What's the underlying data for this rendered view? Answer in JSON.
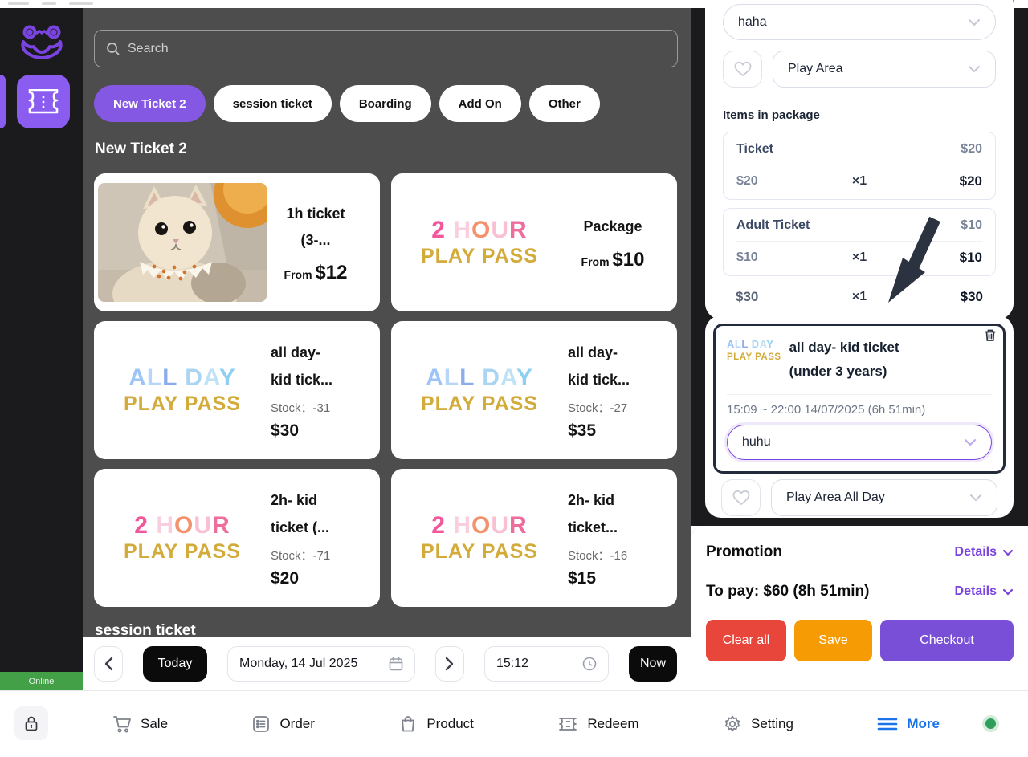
{
  "colors": {
    "accent_purple": "#7a44e0",
    "pill_purple": "#8458e3",
    "red": "#e8453b",
    "orange": "#f79b04",
    "green": "#43a047",
    "blue": "#1a73e8",
    "dark_border": "#232b3a",
    "logo_blue": [
      "#9dc4f4",
      "#b6d5f8",
      "#8badec",
      "#a9d4f2",
      "#bfe2f6",
      "#8fd0f0"
    ],
    "logo_pink": [
      "#f2569b",
      "#f9cede",
      "#f4926e",
      "#f8c0d2",
      "#ee6d9c"
    ],
    "logo_gold": [
      "#d3ab3a"
    ]
  },
  "sidebar": {
    "online_label": "Online"
  },
  "main": {
    "search_placeholder": "Search",
    "filters": [
      {
        "label": "New Ticket 2"
      },
      {
        "label": "session ticket"
      },
      {
        "label": "Boarding"
      },
      {
        "label": "Add On"
      },
      {
        "label": "Other"
      }
    ],
    "section_title": "New Ticket 2",
    "next_section_title": "session ticket",
    "logo_allday": {
      "line1": "ALL DAY",
      "line2": "PLAY PASS"
    },
    "logo_2hour": {
      "line1": "2 HOUR",
      "line2": "PLAY PASS"
    },
    "products": [
      {
        "title1": "1h ticket",
        "title2": "(3-...",
        "from_label": "From",
        "price": "$12"
      },
      {
        "title1": "Package",
        "title2": "",
        "from_label": "From",
        "price": "$10"
      },
      {
        "title1": "all day-",
        "title2": "kid tick...",
        "stock": "Stock：-31",
        "price": "$30"
      },
      {
        "title1": "all day-",
        "title2": "kid tick...",
        "stock": "Stock：-27",
        "price": "$35"
      },
      {
        "title1": "2h- kid",
        "title2": "ticket (...",
        "stock": "Stock：-71",
        "price": "$20"
      },
      {
        "title1": "2h- kid",
        "title2": "ticket...",
        "stock": "Stock：-16",
        "price": "$15"
      }
    ],
    "datebar": {
      "today": "Today",
      "date": "Monday, 14 Jul 2025",
      "time": "15:12",
      "now": "Now"
    }
  },
  "cart": {
    "customer": "haha",
    "area": "Play Area",
    "items_heading": "Items in package",
    "items": [
      {
        "name": "Ticket",
        "price": "$20",
        "unit": "$20",
        "qty": "×1",
        "total": "$20"
      },
      {
        "name": "Adult Ticket",
        "price": "$10",
        "unit": "$10",
        "qty": "×1",
        "total": "$10"
      }
    ],
    "subtotal": {
      "unit": "$30",
      "qty": "×1",
      "total": "$30"
    },
    "highlighted_item": {
      "title1": "all day- kid ticket",
      "title2": "(under 3 years)",
      "time": "15:09 ~ 22:00 14/07/2025 (6h 51min)",
      "note": "huhu",
      "area": "Play Area All Day"
    },
    "promotion_label": "Promotion",
    "details_label": "Details",
    "to_pay": "To pay: $60 (8h 51min)",
    "buttons": {
      "clear": "Clear all",
      "save": "Save",
      "checkout": "Checkout"
    }
  },
  "bottomnav": {
    "items": [
      {
        "label": "Sale"
      },
      {
        "label": "Order"
      },
      {
        "label": "Product"
      },
      {
        "label": "Redeem"
      },
      {
        "label": "Setting"
      },
      {
        "label": "More"
      }
    ]
  }
}
